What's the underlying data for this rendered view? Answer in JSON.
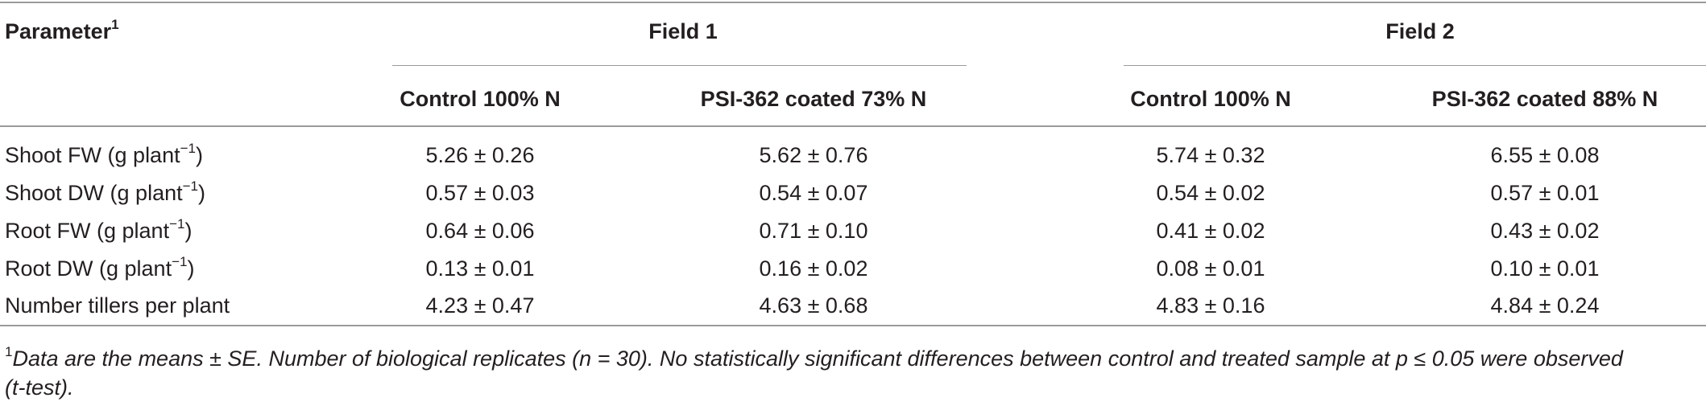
{
  "table": {
    "header": {
      "parameter_label": "Parameter",
      "parameter_sup": "1",
      "group1": "Field 1",
      "group2": "Field 2",
      "columns": [
        "Control 100% N",
        "PSI-362 coated 73% N",
        "Control 100% N",
        "PSI-362 coated 88% N"
      ]
    },
    "rows": [
      {
        "label": "Shoot FW (g plant",
        "label_sup": "−1",
        "label_close": ")",
        "values": [
          "5.26 ± 0.26",
          "5.62 ± 0.76",
          "5.74 ± 0.32",
          "6.55 ± 0.08"
        ]
      },
      {
        "label": "Shoot DW (g plant",
        "label_sup": "−1",
        "label_close": ")",
        "values": [
          "0.57 ± 0.03",
          "0.54 ± 0.07",
          "0.54 ± 0.02",
          "0.57 ± 0.01"
        ]
      },
      {
        "label": "Root FW (g plant",
        "label_sup": "−1",
        "label_close": ")",
        "values": [
          "0.64 ± 0.06",
          "0.71 ± 0.10",
          "0.41 ± 0.02",
          "0.43 ± 0.02"
        ]
      },
      {
        "label": "Root DW (g plant",
        "label_sup": "−1",
        "label_close": ")",
        "values": [
          "0.13 ± 0.01",
          "0.16 ± 0.02",
          "0.08 ± 0.01",
          "0.10 ± 0.01"
        ]
      },
      {
        "label": "Number tillers per plant",
        "label_sup": "",
        "label_close": "",
        "values": [
          "4.23 ± 0.47",
          "4.63 ± 0.68",
          "4.83 ± 0.16",
          "4.84 ± 0.24"
        ]
      }
    ],
    "footnote": {
      "sup": "1",
      "line1": "Data are the means ± SE. Number of biological replicates (n = 30). No statistically significant differences between control and treated sample at p ≤ 0.05 were observed",
      "line2": "(t-test)."
    }
  }
}
